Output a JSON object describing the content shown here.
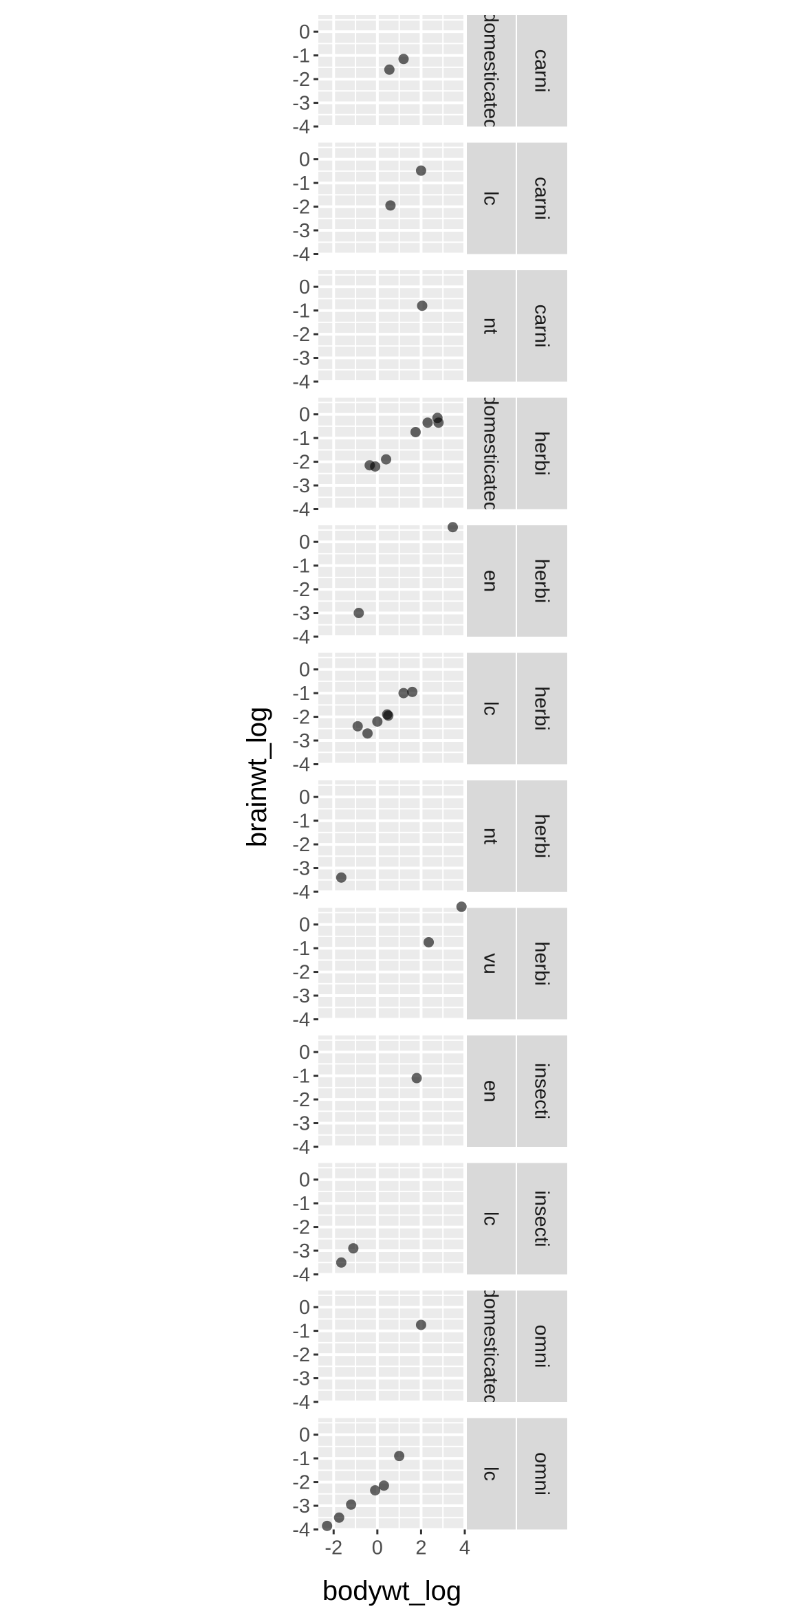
{
  "chart_data": {
    "type": "scatter",
    "title": "",
    "xlabel": "bodywt_log",
    "ylabel": "brainwt_log",
    "xlim": [
      -2.7,
      4.0
    ],
    "ylim": [
      -4.0,
      0.7
    ],
    "x_ticks": [
      -2,
      0,
      2,
      4
    ],
    "x_tick_labels": [
      "-2",
      "0",
      "2",
      "4"
    ],
    "y_ticks": [
      0,
      -1,
      -2,
      -3,
      -4
    ],
    "y_tick_labels": [
      "0",
      "-1",
      "-2",
      "-3",
      "-4"
    ],
    "grid": true,
    "point_color": "#000000",
    "point_alpha": 0.6,
    "panel_background": "#ebebeb",
    "strip_background": "#d9d9d9",
    "panels": [
      {
        "vore": "carni",
        "conservation": "domesticated",
        "points": [
          {
            "x": 0.55,
            "y": -1.6
          },
          {
            "x": 1.2,
            "y": -1.15
          }
        ]
      },
      {
        "vore": "carni",
        "conservation": "lc",
        "points": [
          {
            "x": 2.0,
            "y": -0.48
          },
          {
            "x": 0.6,
            "y": -1.95
          }
        ]
      },
      {
        "vore": "carni",
        "conservation": "nt",
        "points": [
          {
            "x": 2.05,
            "y": -0.8
          }
        ]
      },
      {
        "vore": "herbi",
        "conservation": "domesticated",
        "points": [
          {
            "x": 2.75,
            "y": -0.15
          },
          {
            "x": 2.8,
            "y": -0.35
          },
          {
            "x": 2.3,
            "y": -0.35
          },
          {
            "x": 1.75,
            "y": -0.75
          },
          {
            "x": 0.4,
            "y": -1.9
          },
          {
            "x": -0.35,
            "y": -2.15
          },
          {
            "x": -0.1,
            "y": -2.2
          }
        ]
      },
      {
        "vore": "herbi",
        "conservation": "en",
        "points": [
          {
            "x": 3.45,
            "y": 0.62
          },
          {
            "x": -0.85,
            "y": -3.0
          }
        ]
      },
      {
        "vore": "herbi",
        "conservation": "lc",
        "points": [
          {
            "x": 1.6,
            "y": -0.95
          },
          {
            "x": 1.2,
            "y": -1.0
          },
          {
            "x": 0.45,
            "y": -1.9
          },
          {
            "x": 0.5,
            "y": -1.95
          },
          {
            "x": 0.0,
            "y": -2.2
          },
          {
            "x": -0.9,
            "y": -2.4
          },
          {
            "x": -0.45,
            "y": -2.7
          }
        ]
      },
      {
        "vore": "herbi",
        "conservation": "nt",
        "points": [
          {
            "x": -1.65,
            "y": -3.4
          }
        ]
      },
      {
        "vore": "herbi",
        "conservation": "vu",
        "points": [
          {
            "x": 3.85,
            "y": 0.75
          },
          {
            "x": 2.35,
            "y": -0.75
          }
        ]
      },
      {
        "vore": "insecti",
        "conservation": "en",
        "points": [
          {
            "x": 1.8,
            "y": -1.1
          }
        ]
      },
      {
        "vore": "insecti",
        "conservation": "lc",
        "points": [
          {
            "x": -1.1,
            "y": -2.9
          },
          {
            "x": -1.65,
            "y": -3.5
          }
        ]
      },
      {
        "vore": "omni",
        "conservation": "domesticated",
        "points": [
          {
            "x": 2.0,
            "y": -0.75
          }
        ]
      },
      {
        "vore": "omni",
        "conservation": "lc",
        "points": [
          {
            "x": 1.0,
            "y": -0.9
          },
          {
            "x": 0.3,
            "y": -2.15
          },
          {
            "x": -0.1,
            "y": -2.35
          },
          {
            "x": -1.2,
            "y": -2.95
          },
          {
            "x": -1.75,
            "y": -3.5
          },
          {
            "x": -2.3,
            "y": -3.85
          }
        ]
      }
    ]
  }
}
